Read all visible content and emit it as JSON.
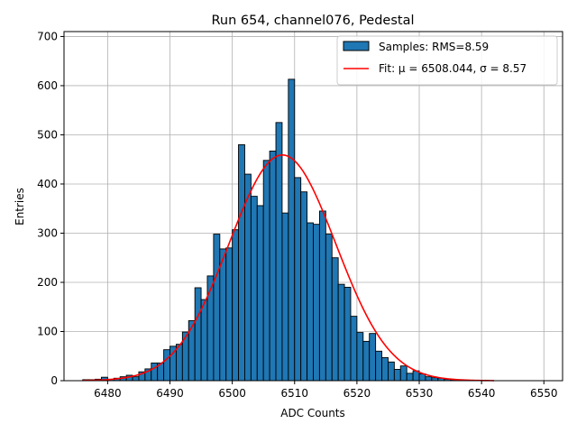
{
  "chart_data": {
    "type": "bar",
    "title": "Run 654, channel076, Pedestal",
    "xlabel": "ADC Counts",
    "ylabel": "Entries",
    "xlim": [
      6473,
      6553
    ],
    "ylim": [
      0,
      710
    ],
    "xticks": [
      6480,
      6490,
      6500,
      6510,
      6520,
      6530,
      6540,
      6550
    ],
    "yticks": [
      0,
      100,
      200,
      300,
      400,
      500,
      600,
      700
    ],
    "grid": true,
    "legend_position": "top-right",
    "bin_width": 1,
    "bins_start": 6476,
    "counts": [
      2,
      2,
      3,
      7,
      3,
      5,
      8,
      11,
      8,
      18,
      24,
      36,
      36,
      63,
      70,
      74,
      99,
      122,
      189,
      165,
      213,
      298,
      268,
      270,
      307,
      480,
      420,
      375,
      356,
      448,
      467,
      525,
      341,
      613,
      413,
      384,
      321,
      318,
      345,
      298,
      250,
      196,
      190,
      131,
      98,
      80,
      96,
      60,
      47,
      38,
      23,
      30,
      15,
      20,
      14,
      8,
      6,
      5,
      3,
      2,
      2,
      1,
      1,
      1,
      1,
      0
    ],
    "series": [
      {
        "name": "Samples: RMS=8.59",
        "kind": "histogram",
        "color": "#1f77b4",
        "edgecolor": "#000000"
      },
      {
        "name": "Fit: μ = 6508.044, σ = 8.57",
        "kind": "gaussian-fit",
        "color": "#ff0000",
        "mu": 6508.044,
        "sigma": 8.57,
        "peak": 459,
        "x_range": [
          6476,
          6542
        ]
      }
    ]
  }
}
